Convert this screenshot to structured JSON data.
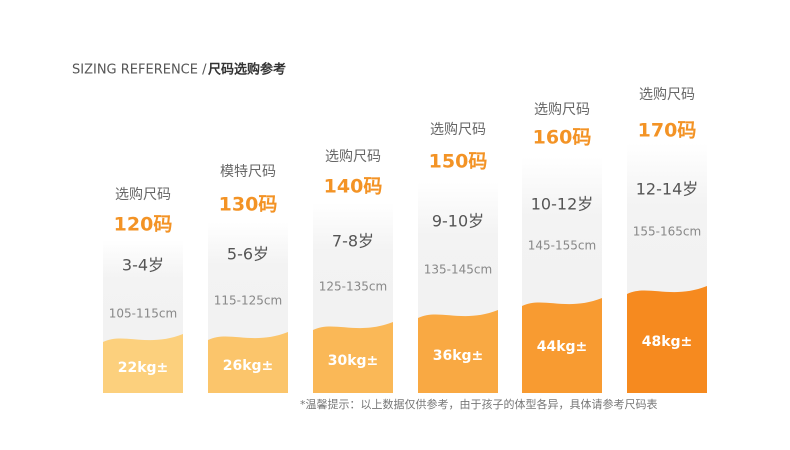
{
  "header": {
    "title_en": "SIZING REFERENCE /",
    "title_cn": "尺码选购参考"
  },
  "columns": [
    {
      "label": "选购尺码",
      "size": "120码",
      "age": "3-4岁",
      "height": "105-115cm",
      "weight": "22kg±"
    },
    {
      "label": "模特尺码",
      "size": "130码",
      "age": "5-6岁",
      "height": "115-125cm",
      "weight": "26kg±"
    },
    {
      "label": "选购尺码",
      "size": "140码",
      "age": "7-8岁",
      "height": "125-135cm",
      "weight": "30kg±"
    },
    {
      "label": "选购尺码",
      "size": "150码",
      "age": "9-10岁",
      "height": "135-145cm",
      "weight": "36kg±"
    },
    {
      "label": "选购尺码",
      "size": "160码",
      "age": "10-12岁",
      "height": "145-155cm",
      "weight": "44kg±"
    },
    {
      "label": "选购尺码",
      "size": "170码",
      "age": "12-14岁",
      "height": "155-165cm",
      "weight": "48kg±"
    }
  ],
  "footnote": "*温馨提示：以上数据仅供参考，由于孩子的体型各异，具体请参考尺码表"
}
